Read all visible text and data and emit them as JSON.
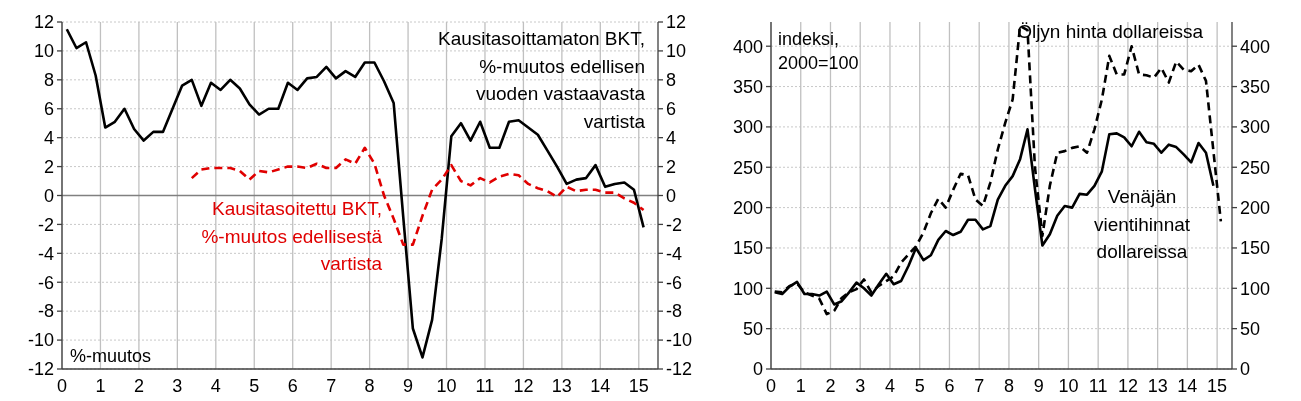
{
  "chart_data": [
    {
      "type": "line",
      "x": [
        0.125,
        0.375,
        0.625,
        0.875,
        1.125,
        1.375,
        1.625,
        1.875,
        2.125,
        2.375,
        2.625,
        2.875,
        3.125,
        3.375,
        3.625,
        3.875,
        4.125,
        4.375,
        4.625,
        4.875,
        5.125,
        5.375,
        5.625,
        5.875,
        6.125,
        6.375,
        6.625,
        6.875,
        7.125,
        7.375,
        7.625,
        7.875,
        8.125,
        8.375,
        8.625,
        8.875,
        9.125,
        9.375,
        9.625,
        9.875,
        10.125,
        10.375,
        10.625,
        10.875,
        11.125,
        11.375,
        11.625,
        11.875,
        12.125,
        12.375,
        12.625,
        12.875,
        13.125,
        13.375,
        13.625,
        13.875,
        14.125,
        14.375,
        14.625,
        14.875,
        15.125
      ],
      "series": [
        {
          "name": "Kausitasoittamaton BKT,\n%-muutos edellisen\nvuoden vastaavasta\nvartista",
          "color": "#000000",
          "line_style": "solid",
          "values": [
            11.5,
            10.2,
            10.6,
            8.3,
            4.7,
            5.1,
            6.0,
            4.6,
            3.8,
            4.4,
            4.4,
            6.0,
            7.6,
            8.0,
            6.2,
            7.8,
            7.3,
            8.0,
            7.4,
            6.3,
            5.6,
            6.0,
            6.0,
            7.8,
            7.3,
            8.1,
            8.2,
            8.9,
            8.1,
            8.6,
            8.2,
            9.2,
            9.2,
            7.9,
            6.4,
            -1.5,
            -9.2,
            -11.2,
            -8.6,
            -3.0,
            4.1,
            5.0,
            3.8,
            5.1,
            3.3,
            3.3,
            5.1,
            5.2,
            4.7,
            4.2,
            3.1,
            2.0,
            0.8,
            1.1,
            1.2,
            2.1,
            0.6,
            0.8,
            0.9,
            0.4,
            -2.2
          ]
        },
        {
          "name": "Kausitasoitettu BKT,\n%-muutos edellisestä\nvartista",
          "color": "#e00000",
          "line_style": "dashed",
          "values": [
            null,
            null,
            null,
            null,
            null,
            null,
            null,
            null,
            null,
            null,
            null,
            null,
            null,
            1.2,
            1.8,
            1.9,
            1.9,
            1.9,
            1.7,
            1.1,
            1.7,
            1.6,
            1.8,
            2.0,
            2.0,
            1.9,
            2.2,
            1.9,
            1.9,
            2.5,
            2.2,
            3.3,
            2.2,
            0.0,
            -1.6,
            -3.4,
            -3.4,
            -1.4,
            0.4,
            1.1,
            2.1,
            1.0,
            0.7,
            1.2,
            0.9,
            1.3,
            1.5,
            1.4,
            0.8,
            0.5,
            0.3,
            -0.1,
            0.6,
            0.3,
            0.4,
            0.4,
            0.2,
            0.2,
            -0.2,
            -0.5,
            -1.0
          ]
        }
      ],
      "xlim": [
        0,
        15.5
      ],
      "xticks": [
        0,
        1,
        2,
        3,
        4,
        5,
        6,
        7,
        8,
        9,
        10,
        11,
        12,
        13,
        14,
        15
      ],
      "ylim": [
        -12,
        12
      ],
      "yticks": [
        -12,
        -10,
        -8,
        -6,
        -4,
        -2,
        0,
        2,
        4,
        6,
        8,
        10,
        12
      ],
      "y2lim": [
        -12,
        12
      ],
      "y2ticks": [
        -12,
        -10,
        -8,
        -6,
        -4,
        -2,
        0,
        2,
        4,
        6,
        8,
        10,
        12
      ],
      "grid": true,
      "marker": "none",
      "ref_lines": [
        {
          "axis": "y",
          "value": 0,
          "color": "#808080"
        }
      ],
      "annotations": [
        "%-muutos"
      ]
    },
    {
      "type": "line",
      "x": [
        0.125,
        0.375,
        0.625,
        0.875,
        1.125,
        1.375,
        1.625,
        1.875,
        2.125,
        2.375,
        2.625,
        2.875,
        3.125,
        3.375,
        3.625,
        3.875,
        4.125,
        4.375,
        4.625,
        4.875,
        5.125,
        5.375,
        5.625,
        5.875,
        6.125,
        6.375,
        6.625,
        6.875,
        7.125,
        7.375,
        7.625,
        7.875,
        8.125,
        8.375,
        8.625,
        8.875,
        9.125,
        9.375,
        9.625,
        9.875,
        10.125,
        10.375,
        10.625,
        10.875,
        11.125,
        11.375,
        11.625,
        11.875,
        12.125,
        12.375,
        12.625,
        12.875,
        13.125,
        13.375,
        13.625,
        13.875,
        14.125,
        14.375,
        14.625,
        14.875,
        15.125
      ],
      "series": [
        {
          "name": "Venäjän\nvientihinnat\ndollareissa",
          "color": "#000000",
          "line_style": "solid",
          "values": [
            95,
            93,
            102,
            108,
            93,
            93,
            91,
            96,
            80,
            84,
            95,
            107,
            100,
            91,
            105,
            118,
            105,
            109,
            128,
            150,
            135,
            141,
            160,
            171,
            166,
            170,
            185,
            185,
            173,
            177,
            210,
            227,
            239,
            260,
            297,
            223,
            153,
            167,
            190,
            202,
            200,
            217,
            216,
            227,
            245,
            291,
            292,
            287,
            276,
            294,
            281,
            279,
            268,
            278,
            275,
            266,
            256,
            280,
            268,
            227,
            null
          ]
        },
        {
          "name": "Öljyn hinta dollareissa",
          "color": "#000000",
          "line_style": "dashed",
          "values": [
            96,
            95,
            103,
            106,
            95,
            91,
            87,
            68,
            72,
            88,
            95,
            99,
            111,
            95,
            103,
            109,
            115,
            132,
            142,
            152,
            169,
            193,
            211,
            200,
            222,
            242,
            240,
            210,
            202,
            231,
            272,
            305,
            334,
            425,
            420,
            250,
            165,
            227,
            268,
            270,
            274,
            276,
            268,
            297,
            334,
            388,
            365,
            365,
            400,
            365,
            364,
            361,
            373,
            355,
            381,
            371,
            369,
            377,
            357,
            270,
            183
          ]
        }
      ],
      "xlim": [
        0,
        15.5
      ],
      "xticks": [
        0,
        1,
        2,
        3,
        4,
        5,
        6,
        7,
        8,
        9,
        10,
        11,
        12,
        13,
        14,
        15
      ],
      "ylim": [
        0,
        430
      ],
      "yticks": [
        0,
        50,
        100,
        150,
        200,
        250,
        300,
        350,
        400
      ],
      "y2lim": [
        0,
        430
      ],
      "y2ticks": [
        0,
        50,
        100,
        150,
        200,
        250,
        300,
        350,
        400
      ],
      "grid": true,
      "marker": "none",
      "annotations": [
        "indeksi,\n2000=100"
      ]
    }
  ]
}
